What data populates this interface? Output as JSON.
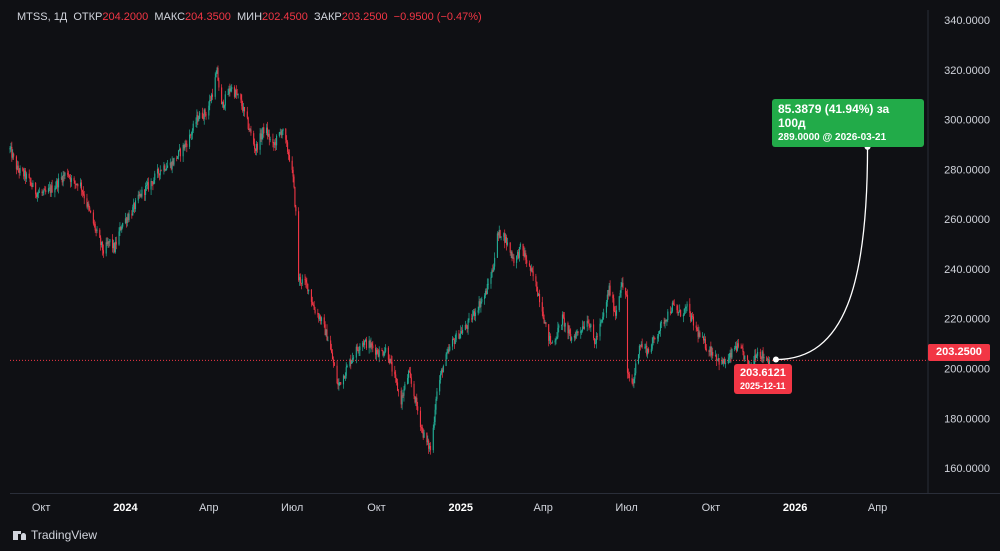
{
  "header": {
    "symbol": "MTSS",
    "interval": "1Д",
    "open_label": "ОТКР",
    "open": "204.2000",
    "high_label": "МАКС",
    "high": "204.3500",
    "low_label": "МИН",
    "low": "202.4500",
    "close_label": "ЗАКР",
    "close": "203.2500",
    "change": "−0.9500 (−0.47%)"
  },
  "current_price_tag": "203.2500",
  "projection": {
    "up_box": {
      "line1": "85.3879 (41.94%) за 100д",
      "line2": "289.0000 @ 2026-03-21"
    },
    "down_box": {
      "line1": "203.6121",
      "line2": "2025-12-11"
    }
  },
  "branding": {
    "name": "TradingView"
  },
  "colors": {
    "up": "#22ab94",
    "down": "#f23645",
    "background": "#0f1014",
    "text": "#d1d4dc",
    "projection_box": "#22ab49"
  },
  "chart_data": {
    "type": "candlestick",
    "symbol": "MTSS",
    "interval": "1Д",
    "y_ticks": [
      160,
      180,
      200,
      220,
      240,
      260,
      280,
      300,
      320,
      340
    ],
    "y_tick_labels": [
      "160.0000",
      "180.0000",
      "200.0000",
      "220.0000",
      "240.0000",
      "260.0000",
      "280.0000",
      "300.0000",
      "320.0000",
      "340.0000"
    ],
    "ylim": [
      150,
      344
    ],
    "x_tick_labels": [
      "Окт",
      "2024",
      "Апр",
      "Июл",
      "Окт",
      "2025",
      "Апр",
      "Июл",
      "Окт",
      "2026",
      "Апр"
    ],
    "x_tick_dates": [
      "2023-10-01",
      "2024-01-01",
      "2024-04-01",
      "2024-07-01",
      "2024-10-01",
      "2025-01-01",
      "2025-04-01",
      "2025-07-01",
      "2025-10-01",
      "2026-01-01",
      "2026-04-01"
    ],
    "xlim": [
      "2023-08-28",
      "2026-05-26"
    ],
    "price_path": [
      [
        "2023-08-28",
        288
      ],
      [
        "2023-09-05",
        280
      ],
      [
        "2023-09-15",
        277
      ],
      [
        "2023-09-25",
        271
      ],
      [
        "2023-10-05",
        270
      ],
      [
        "2023-10-15",
        273
      ],
      [
        "2023-10-22",
        276
      ],
      [
        "2023-10-30",
        279
      ],
      [
        "2023-11-05",
        274
      ],
      [
        "2023-11-12",
        275
      ],
      [
        "2023-11-20",
        266
      ],
      [
        "2023-11-30",
        255
      ],
      [
        "2023-12-08",
        247
      ],
      [
        "2023-12-15",
        251
      ],
      [
        "2023-12-20",
        248
      ],
      [
        "2023-12-28",
        258
      ],
      [
        "2024-01-08",
        263
      ],
      [
        "2024-01-18",
        270
      ],
      [
        "2024-01-30",
        275
      ],
      [
        "2024-02-10",
        281
      ],
      [
        "2024-02-20",
        282
      ],
      [
        "2024-03-01",
        287
      ],
      [
        "2024-03-10",
        292
      ],
      [
        "2024-03-20",
        301
      ],
      [
        "2024-03-30",
        303
      ],
      [
        "2024-04-05",
        311
      ],
      [
        "2024-04-10",
        319
      ],
      [
        "2024-04-15",
        305
      ],
      [
        "2024-04-25",
        313
      ],
      [
        "2024-05-05",
        308
      ],
      [
        "2024-05-12",
        300
      ],
      [
        "2024-05-22",
        288
      ],
      [
        "2024-06-01",
        297
      ],
      [
        "2024-06-10",
        289
      ],
      [
        "2024-06-20",
        296
      ],
      [
        "2024-06-28",
        285
      ],
      [
        "2024-07-02",
        276
      ],
      [
        "2024-07-05",
        262
      ],
      [
        "2024-07-08",
        236
      ],
      [
        "2024-07-12",
        235
      ],
      [
        "2024-07-18",
        233
      ],
      [
        "2024-07-25",
        224
      ],
      [
        "2024-08-01",
        220
      ],
      [
        "2024-08-10",
        211
      ],
      [
        "2024-08-20",
        193
      ],
      [
        "2024-08-27",
        198
      ],
      [
        "2024-09-05",
        205
      ],
      [
        "2024-09-15",
        211
      ],
      [
        "2024-09-25",
        209
      ],
      [
        "2024-10-05",
        206
      ],
      [
        "2024-10-12",
        208
      ],
      [
        "2024-10-20",
        197
      ],
      [
        "2024-10-28",
        187
      ],
      [
        "2024-11-05",
        198
      ],
      [
        "2024-11-12",
        188
      ],
      [
        "2024-11-20",
        175
      ],
      [
        "2024-11-25",
        170
      ],
      [
        "2024-11-30",
        167
      ],
      [
        "2024-12-05",
        189
      ],
      [
        "2024-12-12",
        200
      ],
      [
        "2024-12-22",
        210
      ],
      [
        "2024-12-30",
        214
      ],
      [
        "2025-01-08",
        217
      ],
      [
        "2025-01-18",
        224
      ],
      [
        "2025-01-28",
        230
      ],
      [
        "2025-02-05",
        240
      ],
      [
        "2025-02-10",
        253
      ],
      [
        "2025-02-15",
        255
      ],
      [
        "2025-02-22",
        249
      ],
      [
        "2025-03-01",
        243
      ],
      [
        "2025-03-08",
        249
      ],
      [
        "2025-03-15",
        242
      ],
      [
        "2025-03-22",
        236
      ],
      [
        "2025-03-30",
        226
      ],
      [
        "2025-04-05",
        214
      ],
      [
        "2025-04-10",
        210
      ],
      [
        "2025-04-15",
        213
      ],
      [
        "2025-04-22",
        220
      ],
      [
        "2025-05-01",
        212
      ],
      [
        "2025-05-10",
        215
      ],
      [
        "2025-05-20",
        220
      ],
      [
        "2025-05-27",
        210
      ],
      [
        "2025-06-05",
        220
      ],
      [
        "2025-06-12",
        232
      ],
      [
        "2025-06-19",
        222
      ],
      [
        "2025-06-25",
        234
      ],
      [
        "2025-07-01",
        229
      ],
      [
        "2025-07-02",
        197
      ],
      [
        "2025-07-08",
        194
      ],
      [
        "2025-07-15",
        210
      ],
      [
        "2025-07-25",
        207
      ],
      [
        "2025-08-02",
        213
      ],
      [
        "2025-08-12",
        220
      ],
      [
        "2025-08-20",
        225
      ],
      [
        "2025-08-28",
        222
      ],
      [
        "2025-09-05",
        224
      ],
      [
        "2025-09-12",
        218
      ],
      [
        "2025-09-20",
        212
      ],
      [
        "2025-09-28",
        208
      ],
      [
        "2025-10-05",
        206
      ],
      [
        "2025-10-12",
        202
      ],
      [
        "2025-10-20",
        203
      ],
      [
        "2025-10-28",
        209
      ],
      [
        "2025-11-05",
        206
      ],
      [
        "2025-11-12",
        200
      ],
      [
        "2025-11-20",
        207
      ],
      [
        "2025-11-27",
        205
      ],
      [
        "2025-12-04",
        203.25
      ]
    ],
    "last_close": 203.25,
    "projection_line": {
      "from": {
        "date": "2025-12-11",
        "value": 203.6121
      },
      "to": {
        "date": "2026-03-21",
        "value": 289.0
      }
    },
    "grid": false
  }
}
